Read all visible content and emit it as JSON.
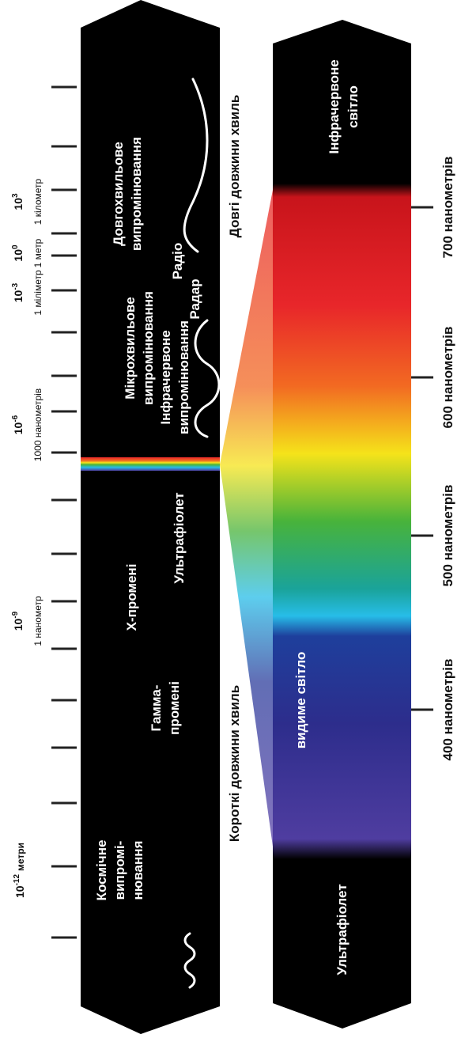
{
  "colors": {
    "background": "#ffffff",
    "band": "#000000",
    "label_white": "#ffffff",
    "label_black": "#111111",
    "tick": "#222222"
  },
  "scale": {
    "ticks": [
      {
        "exponent": "10",
        "sup": "3",
        "unit": "1 кілометр"
      },
      {
        "exponent": "10",
        "sup": "0",
        "unit": "1 метр"
      },
      {
        "exponent": "10",
        "sup": "-3",
        "unit": "1 міліметр"
      },
      {
        "exponent": "10",
        "sup": "-6",
        "unit": "1000 нанометрів"
      },
      {
        "exponent": "10",
        "sup": "-9",
        "unit": "1 нанометр"
      },
      {
        "exponent": "10",
        "sup": "-12",
        "unit": "метри"
      }
    ]
  },
  "left_band": {
    "long_wave": "Довгохвильове",
    "long_wave_2": "випромінювання",
    "radio": "Радіо",
    "radar": "Радар",
    "microwave": "Мікрохвильове",
    "microwave_2": "випромінювання",
    "infrared": "Інфрачервоне",
    "infrared_2": "випромінювання",
    "ultraviolet": "Ультрафіолет",
    "xray": "Х-промені",
    "gamma": "Гамма-",
    "gamma_2": "промені",
    "cosmic": "Космічне",
    "cosmic_2": "випромі-",
    "cosmic_3": "нювання"
  },
  "middle": {
    "long_waves": "Довгі довжини хвиль",
    "short_waves": "Короткі довжини хвиль"
  },
  "right_band": {
    "infrared": "Інфрачервоне",
    "infrared_2": "світло",
    "visible": "видиме світло",
    "ultraviolet": "Ультрафіолет"
  },
  "nm_scale": {
    "labels": [
      "700 нанометрів",
      "600 нанометрів",
      "500 нанометрів",
      "400 нанометрів"
    ]
  }
}
